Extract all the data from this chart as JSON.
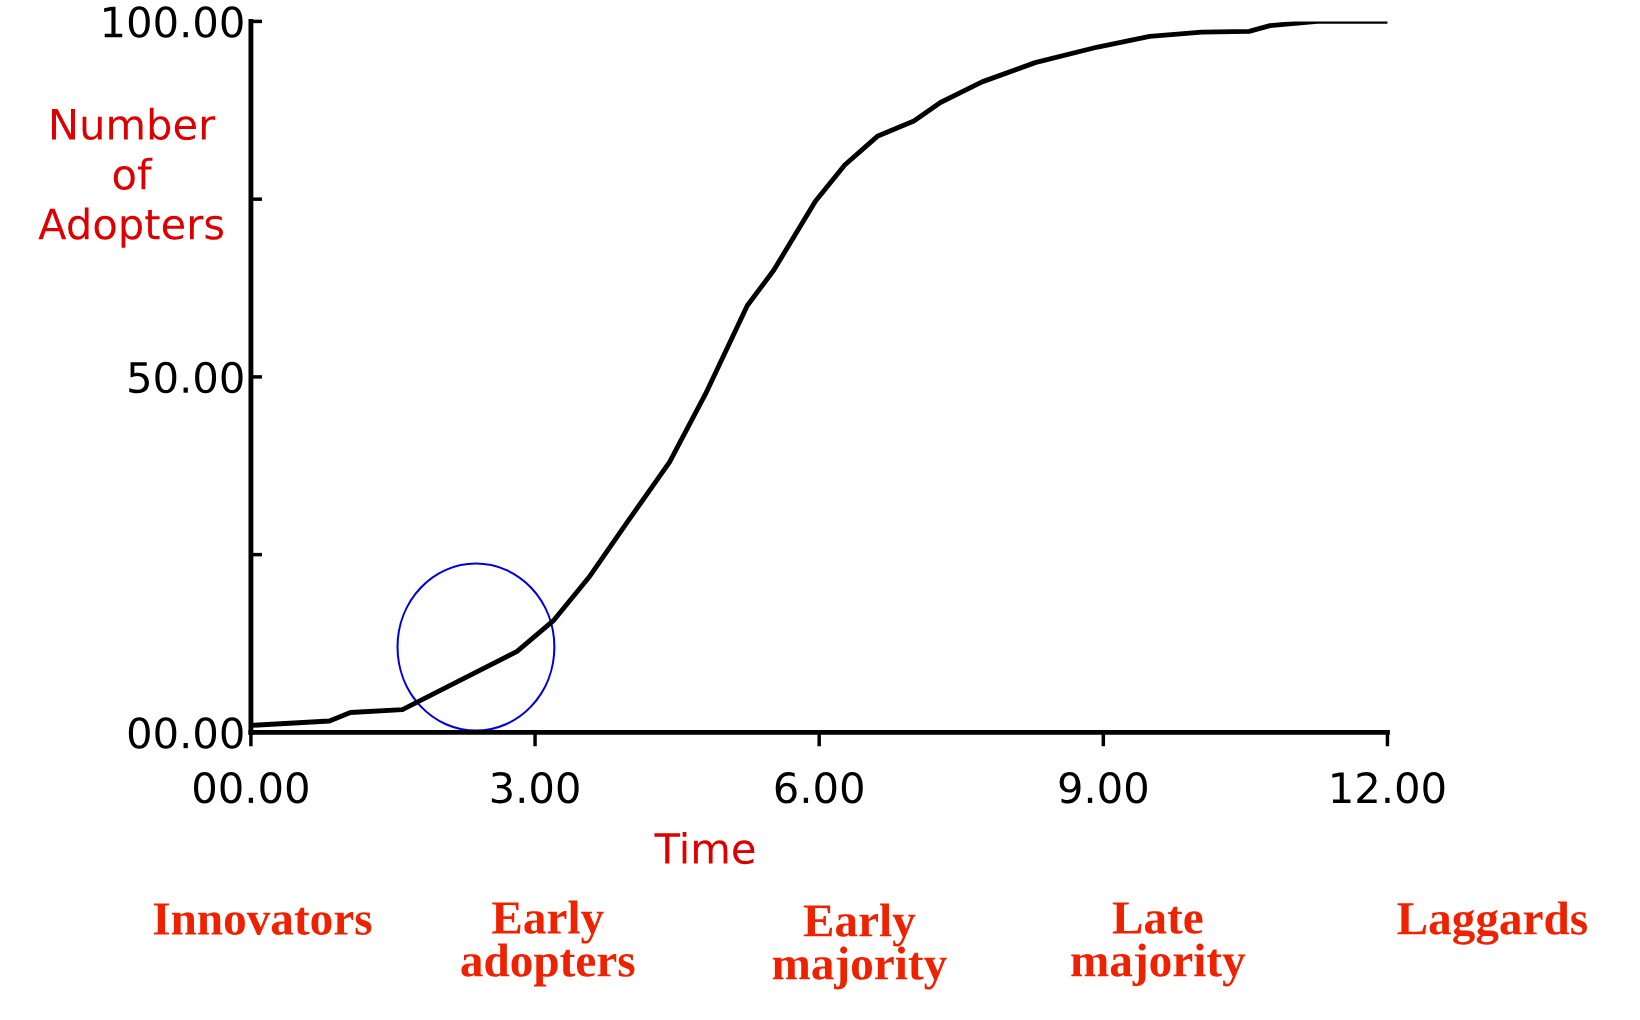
{
  "chart_data": {
    "type": "line",
    "xlabel": "Time",
    "ylabel": "Number\nof\nAdopters",
    "x": [
      0.03,
      0.83,
      1.05,
      1.6,
      2.0,
      2.81,
      3.2,
      3.58,
      3.97,
      4.42,
      4.8,
      5.24,
      5.52,
      5.96,
      6.27,
      6.62,
      7.0,
      7.28,
      7.72,
      8.28,
      8.94,
      9.49,
      10.04,
      10.54,
      10.76,
      11.26,
      11.98
    ],
    "series": [
      {
        "color": "#000000",
        "values": [
          1.0,
          1.6,
          2.8,
          3.2,
          5.9,
          11.4,
          15.8,
          22,
          29.5,
          38,
          47.6,
          60,
          65,
          74.7,
          79.8,
          83.9,
          86,
          88.6,
          91.5,
          94.2,
          96.4,
          97.9,
          98.5,
          98.6,
          99.4,
          100,
          100
        ]
      }
    ],
    "xlim": [
      0,
      12
    ],
    "ylim": [
      0,
      100
    ],
    "xticks": [
      {
        "value": 0,
        "label": "00.00"
      },
      {
        "value": 3,
        "label": "3.00"
      },
      {
        "value": 6,
        "label": "6.00"
      },
      {
        "value": 9,
        "label": "9.00"
      },
      {
        "value": 12,
        "label": "12.00"
      }
    ],
    "yticks": [
      {
        "value": 0,
        "label": "00.00"
      },
      {
        "value": 25,
        "label": null
      },
      {
        "value": 50,
        "label": "50.00"
      },
      {
        "value": 75,
        "label": null
      },
      {
        "value": 100,
        "label": "100.00"
      }
    ],
    "grid": false,
    "marker": "none",
    "line_style": "solid",
    "annotations": [
      "Innovators",
      "Early\nadopters",
      "Early\nmajority",
      "Late\nmajority",
      "Laggards"
    ]
  }
}
